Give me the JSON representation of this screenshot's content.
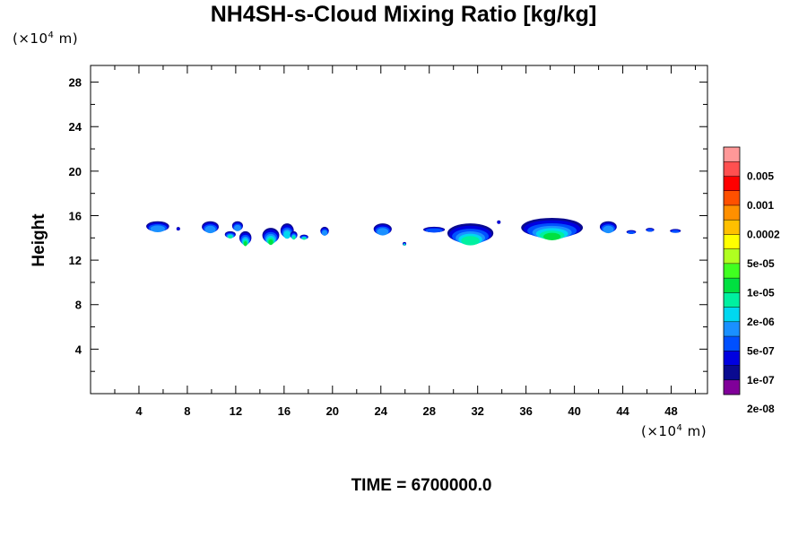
{
  "chart_data": {
    "type": "heatmap",
    "title": "NH4SH-s-Cloud Mixing Ratio [kg/kg]",
    "ylabel": "Height",
    "x_unit": "(×10⁴ m)",
    "y_unit": "(×10⁴ m)",
    "x_unit_base": "(×10",
    "x_unit_exp": "4",
    "x_unit_tail": " m)",
    "time_label": "TIME = 6700000.0",
    "xlim": [
      0,
      51
    ],
    "ylim": [
      0,
      29.5
    ],
    "xticks": [
      4,
      8,
      12,
      16,
      20,
      24,
      28,
      32,
      36,
      40,
      44,
      48
    ],
    "yticks": [
      4,
      8,
      12,
      16,
      20,
      24,
      28
    ],
    "grid": false,
    "legend_position": "right",
    "colorbar": {
      "labels": [
        "0.005",
        "0.001",
        "0.0002",
        "5e-05",
        "1e-05",
        "2e-06",
        "5e-07",
        "1e-07",
        "2e-08"
      ],
      "colors": [
        "#800099",
        "#0a0a90",
        "#0000e0",
        "#0050ff",
        "#1a90ff",
        "#00d8f0",
        "#00f0a0",
        "#00e040",
        "#40ff20",
        "#b0ff20",
        "#ffff00",
        "#ffc000",
        "#ff9000",
        "#ff5000",
        "#ff0000",
        "#ff5050",
        "#ff9898"
      ]
    },
    "cloud_patches": [
      {
        "x0": 4.6,
        "x1": 6.5,
        "ytop": 15.5,
        "ybot": 14.4,
        "level": 4
      },
      {
        "x0": 7.1,
        "x1": 7.4,
        "ytop": 14.9,
        "ybot": 14.7,
        "level": 1
      },
      {
        "x0": 9.2,
        "x1": 10.6,
        "ytop": 15.5,
        "ybot": 14.3,
        "level": 4
      },
      {
        "x0": 11.1,
        "x1": 12.0,
        "ytop": 14.6,
        "ybot": 13.9,
        "level": 6
      },
      {
        "x0": 11.7,
        "x1": 12.6,
        "ytop": 15.5,
        "ybot": 14.5,
        "level": 4
      },
      {
        "x0": 12.3,
        "x1": 13.3,
        "ytop": 14.6,
        "ybot": 13.2,
        "level": 7
      },
      {
        "x0": 14.2,
        "x1": 15.6,
        "ytop": 14.9,
        "ybot": 13.3,
        "level": 7
      },
      {
        "x0": 15.7,
        "x1": 16.8,
        "ytop": 15.3,
        "ybot": 13.8,
        "level": 5
      },
      {
        "x0": 16.5,
        "x1": 17.1,
        "ytop": 14.6,
        "ybot": 13.8,
        "level": 6
      },
      {
        "x0": 17.3,
        "x1": 18.0,
        "ytop": 14.3,
        "ybot": 13.8,
        "level": 6
      },
      {
        "x0": 19.0,
        "x1": 19.7,
        "ytop": 15.0,
        "ybot": 14.1,
        "level": 4
      },
      {
        "x0": 23.4,
        "x1": 24.9,
        "ytop": 15.3,
        "ybot": 14.1,
        "level": 4
      },
      {
        "x0": 25.8,
        "x1": 26.1,
        "ytop": 13.6,
        "ybot": 13.3,
        "level": 6
      },
      {
        "x0": 27.5,
        "x1": 29.3,
        "ytop": 15.0,
        "ybot": 14.4,
        "level": 3
      },
      {
        "x0": 29.5,
        "x1": 33.3,
        "ytop": 15.3,
        "ybot": 13.2,
        "level": 6
      },
      {
        "x0": 33.6,
        "x1": 33.9,
        "ytop": 15.5,
        "ybot": 15.3,
        "level": 1
      },
      {
        "x0": 35.6,
        "x1": 40.7,
        "ytop": 15.8,
        "ybot": 13.7,
        "level": 7
      },
      {
        "x0": 42.1,
        "x1": 43.5,
        "ytop": 15.5,
        "ybot": 14.3,
        "level": 4
      },
      {
        "x0": 44.3,
        "x1": 45.1,
        "ytop": 14.7,
        "ybot": 14.3,
        "level": 3
      },
      {
        "x0": 45.9,
        "x1": 46.6,
        "ytop": 14.9,
        "ybot": 14.5,
        "level": 3
      },
      {
        "x0": 47.9,
        "x1": 48.8,
        "ytop": 14.8,
        "ybot": 14.4,
        "level": 3
      }
    ]
  }
}
